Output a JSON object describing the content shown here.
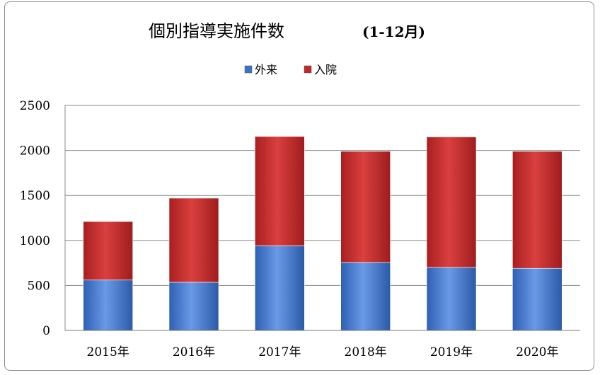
{
  "chart_data": {
    "type": "bar",
    "stacked": true,
    "title": "個別指導実施件数",
    "subtitle": "(1-12月)",
    "categories": [
      "2015年",
      "2016年",
      "2017年",
      "2018年",
      "2019年",
      "2020年"
    ],
    "series": [
      {
        "name": "外来",
        "color": "#3b72cc",
        "values": [
          560,
          535,
          940,
          755,
          700,
          690
        ]
      },
      {
        "name": "入院",
        "color": "#c0282a",
        "values": [
          650,
          935,
          1215,
          1235,
          1450,
          1300
        ]
      }
    ],
    "ylim": [
      0,
      2500
    ],
    "yticks": [
      "0",
      "500",
      "1000",
      "1500",
      "2000",
      "2500"
    ],
    "grid": true,
    "legend_position": "top"
  }
}
